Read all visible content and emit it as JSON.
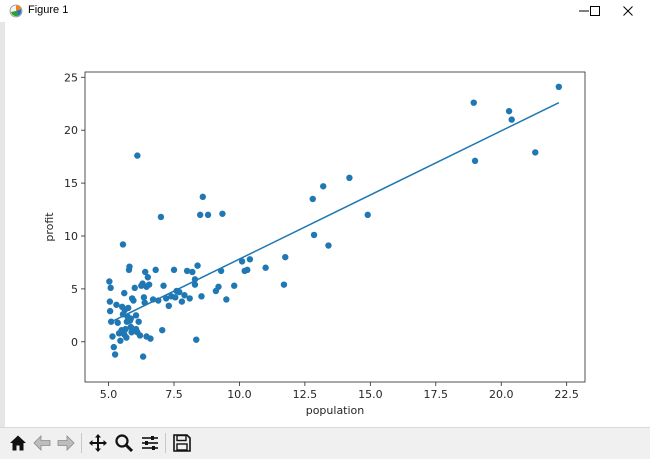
{
  "window": {
    "title": "Figure 1",
    "icon": "matplotlib-icon",
    "controls": [
      "minimize-icon",
      "maximize-icon",
      "close-icon"
    ]
  },
  "toolbar": {
    "buttons": [
      "home-icon",
      "back-icon",
      "forward-icon",
      "pan-icon",
      "zoom-icon",
      "configure-subplots-icon",
      "save-icon"
    ]
  },
  "colors": {
    "points": "#1f77b4",
    "line": "#1f77b4",
    "axes": "#262626"
  },
  "chart_data": {
    "type": "scatter",
    "title": "",
    "xlabel": "population",
    "ylabel": "profit",
    "xlim": [
      4.1,
      23.2
    ],
    "ylim": [
      -3.8,
      25.5
    ],
    "xticks": [
      5.0,
      7.5,
      10.0,
      12.5,
      15.0,
      17.5,
      20.0,
      22.5
    ],
    "xtick_labels": [
      "5.0",
      "7.5",
      "10.0",
      "12.5",
      "15.0",
      "17.5",
      "20.0",
      "22.5"
    ],
    "yticks": [
      0,
      5,
      10,
      15,
      20,
      25
    ],
    "ytick_labels": [
      "0",
      "5",
      "10",
      "15",
      "20",
      "25"
    ],
    "grid": false,
    "series": [
      {
        "type": "scatter",
        "x": [
          5.03,
          5.05,
          5.06,
          5.08,
          5.1,
          5.15,
          5.2,
          5.25,
          5.3,
          5.35,
          5.4,
          5.45,
          5.5,
          5.52,
          5.55,
          5.6,
          5.6,
          5.62,
          5.65,
          5.68,
          5.7,
          5.72,
          5.75,
          5.78,
          5.8,
          5.82,
          5.85,
          5.88,
          5.9,
          5.95,
          6.0,
          6.05,
          6.1,
          6.15,
          6.2,
          6.25,
          6.3,
          6.32,
          6.35,
          6.38,
          6.4,
          6.45,
          6.5,
          6.55,
          6.6,
          6.7,
          6.8,
          6.9,
          7.0,
          7.05,
          7.1,
          7.2,
          7.3,
          7.4,
          7.5,
          7.55,
          7.6,
          7.7,
          7.8,
          7.9,
          8.0,
          8.1,
          8.2,
          8.3,
          8.35,
          8.4,
          8.5,
          8.55,
          8.6,
          8.8,
          9.1,
          9.2,
          9.3,
          9.35,
          9.5,
          9.8,
          10.1,
          10.2,
          10.3,
          10.4,
          11.0,
          11.7,
          11.75,
          12.8,
          12.85,
          13.2,
          13.4,
          14.2,
          14.9,
          18.95,
          19.0,
          20.3,
          20.4,
          21.3,
          22.2,
          6.1,
          5.55,
          5.85,
          6.05,
          6.45,
          8.3
        ],
        "y": [
          5.7,
          3.8,
          2.9,
          5.1,
          1.9,
          0.5,
          -0.5,
          -1.2,
          3.5,
          1.8,
          0.8,
          0.1,
          1.1,
          3.3,
          9.2,
          4.6,
          0.7,
          3.0,
          1.2,
          0.4,
          1.9,
          2.4,
          3.2,
          6.8,
          7.1,
          2.0,
          1.4,
          0.9,
          4.1,
          3.9,
          5.1,
          2.5,
          17.6,
          1.9,
          0.6,
          5.3,
          5.5,
          -1.4,
          4.2,
          3.7,
          6.6,
          5.2,
          6.1,
          5.4,
          0.3,
          4.0,
          6.8,
          3.9,
          11.8,
          1.1,
          5.3,
          4.1,
          3.4,
          4.3,
          6.8,
          4.2,
          4.8,
          4.7,
          3.8,
          4.4,
          6.7,
          4.1,
          6.6,
          5.4,
          0.2,
          7.2,
          12.0,
          4.3,
          13.7,
          12.0,
          4.8,
          5.2,
          6.7,
          12.1,
          4.0,
          5.3,
          7.6,
          6.7,
          6.8,
          7.8,
          7.0,
          5.4,
          8.0,
          13.5,
          10.1,
          14.7,
          9.1,
          15.5,
          12.0,
          22.6,
          17.1,
          21.8,
          21.0,
          17.9,
          24.1,
          0.9,
          2.6,
          2.2,
          1.2,
          0.5,
          5.9
        ]
      },
      {
        "type": "line",
        "x": [
          5.03,
          22.2
        ],
        "y": [
          1.8,
          22.6
        ]
      }
    ]
  }
}
